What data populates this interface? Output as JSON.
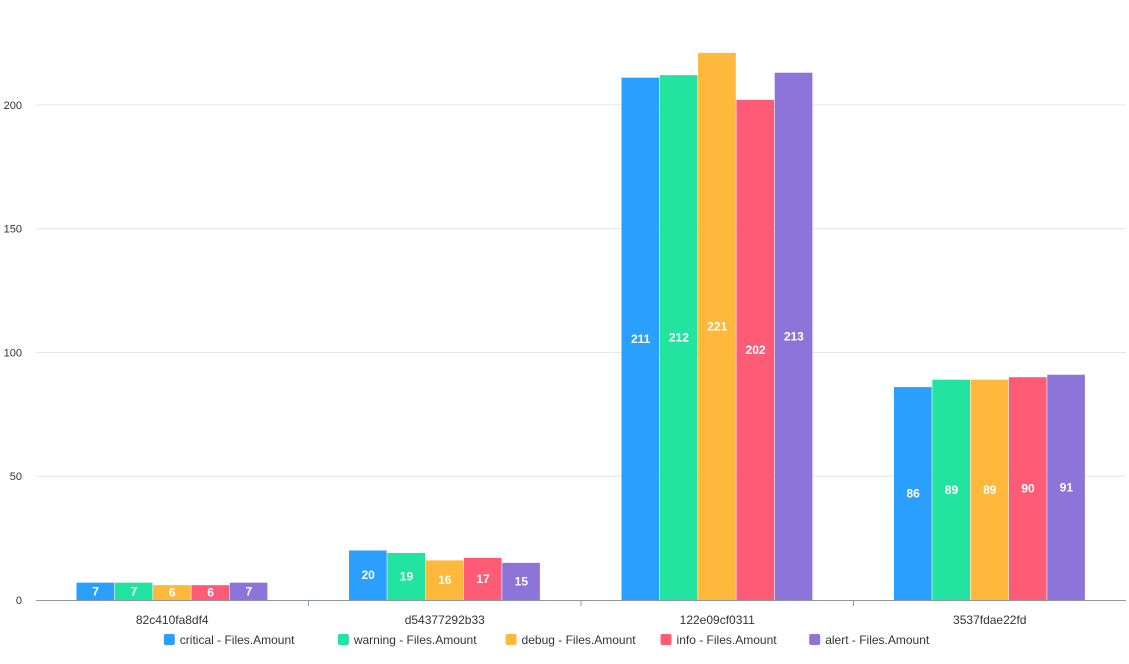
{
  "chart_data": {
    "type": "bar",
    "title": "",
    "xlabel": "",
    "ylabel": "",
    "ylim": [
      0,
      225
    ],
    "yticks": [
      0,
      50,
      100,
      150,
      200
    ],
    "grid": true,
    "legend_position": "bottom",
    "categories": [
      "82c410fa8df4",
      "d54377292b33",
      "122e09cf0311",
      "3537fdae22fd"
    ],
    "series": [
      {
        "name": "critical - Files.Amount",
        "color": "#2b9ffe",
        "values": [
          7,
          20,
          211,
          86
        ]
      },
      {
        "name": "warning - Files.Amount",
        "color": "#22e3a0",
        "values": [
          7,
          19,
          212,
          89
        ]
      },
      {
        "name": "debug - Files.Amount",
        "color": "#feb83c",
        "values": [
          6,
          16,
          221,
          89
        ]
      },
      {
        "name": "info - Files.Amount",
        "color": "#fe5c76",
        "values": [
          6,
          17,
          202,
          90
        ]
      },
      {
        "name": "alert - Files.Amount",
        "color": "#8c74d8",
        "values": [
          7,
          15,
          213,
          91
        ]
      }
    ]
  }
}
